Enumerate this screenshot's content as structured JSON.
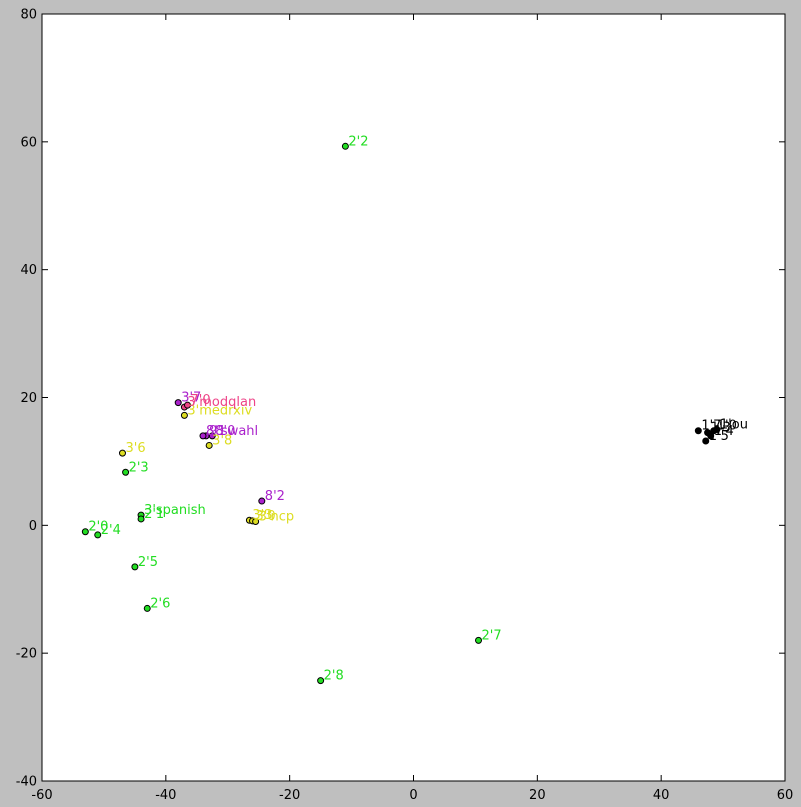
{
  "chart_data": {
    "type": "scatter",
    "title": "",
    "xlabel": "",
    "ylabel": "",
    "xlim": [
      -60,
      60
    ],
    "ylim": [
      -40,
      80
    ],
    "xticks": [
      -60,
      -40,
      -20,
      0,
      20,
      40,
      60
    ],
    "yticks": [
      -40,
      -20,
      0,
      20,
      40,
      60,
      80
    ],
    "grid": false,
    "legend": "none",
    "points": [
      {
        "x": -11,
        "y": 59.3,
        "label": "2'2",
        "color": "#22dd22"
      },
      {
        "x": 10.5,
        "y": -18,
        "label": "2'7",
        "color": "#22dd22"
      },
      {
        "x": -15,
        "y": -24.3,
        "label": "2'8",
        "color": "#22dd22"
      },
      {
        "x": -43,
        "y": -13,
        "label": "2'6",
        "color": "#22dd22"
      },
      {
        "x": -45,
        "y": -6.5,
        "label": "2'5",
        "color": "#22dd22"
      },
      {
        "x": -53,
        "y": -1,
        "label": "2'0",
        "color": "#22dd22"
      },
      {
        "x": -51,
        "y": -1.5,
        "label": "2'4",
        "color": "#22dd22"
      },
      {
        "x": -44,
        "y": 1.6,
        "label": "3'spanish",
        "color": "#22dd22"
      },
      {
        "x": -44,
        "y": 1,
        "label": "2'1",
        "color": "#22dd22"
      },
      {
        "x": -46.5,
        "y": 8.3,
        "label": "2'3",
        "color": "#22dd22"
      },
      {
        "x": -47,
        "y": 11.3,
        "label": "3'6",
        "color": "#dddd22"
      },
      {
        "x": -33,
        "y": 12.5,
        "label": "3'8",
        "color": "#dddd22"
      },
      {
        "x": -37,
        "y": 17.2,
        "label": "3'medrxiv",
        "color": "#dddd22"
      },
      {
        "x": -37,
        "y": 18.5,
        "label": "3'modqlan",
        "color": "#ee4488"
      },
      {
        "x": -38,
        "y": 19.2,
        "label": "3'7",
        "color": "#aa22cc"
      },
      {
        "x": -36.5,
        "y": 18.8,
        "label": "7'0",
        "color": "#ee4488"
      },
      {
        "x": -33.5,
        "y": 14,
        "label": "9'swahl",
        "color": "#aa22cc"
      },
      {
        "x": -34,
        "y": 14,
        "label": "8'1",
        "color": "#aa22cc"
      },
      {
        "x": -32.5,
        "y": 14,
        "label": "8'0",
        "color": "#aa22cc"
      },
      {
        "x": -24.5,
        "y": 3.8,
        "label": "8'2",
        "color": "#aa22cc"
      },
      {
        "x": -26.5,
        "y": 0.8,
        "label": "3'3",
        "color": "#dddd22"
      },
      {
        "x": -26,
        "y": 0.7,
        "label": "3'0",
        "color": "#dddd22"
      },
      {
        "x": -25.5,
        "y": 0.6,
        "label": "3'ncp",
        "color": "#dddd22"
      },
      {
        "x": 46,
        "y": 14.8,
        "label": "1'7",
        "color": "#000000"
      },
      {
        "x": 47.5,
        "y": 14.5,
        "label": "1'3",
        "color": "#000000"
      },
      {
        "x": 48.5,
        "y": 14.8,
        "label": "1'0",
        "color": "#000000"
      },
      {
        "x": 49,
        "y": 15,
        "label": "1'ou",
        "color": "#000000"
      },
      {
        "x": 47.2,
        "y": 13.2,
        "label": "1'5",
        "color": "#000000"
      },
      {
        "x": 48,
        "y": 14,
        "label": "1'4",
        "color": "#000000"
      }
    ]
  }
}
